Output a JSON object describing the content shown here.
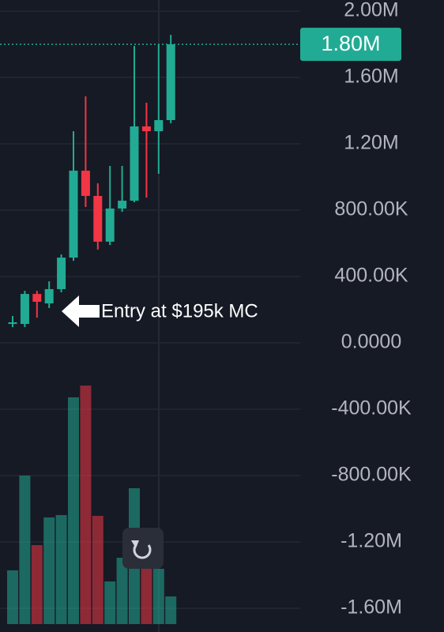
{
  "chart_data": {
    "type": "candlestick",
    "open": [
      114000,
      114000,
      295000,
      238000,
      324000,
      514000,
      1038000,
      886000,
      610000,
      810000,
      857000,
      1305000,
      1276000,
      1343000
    ],
    "high": [
      162000,
      314000,
      314000,
      371000,
      533000,
      1276000,
      1486000,
      962000,
      1067000,
      1067000,
      1790000,
      1448000,
      1800000,
      1857000
    ],
    "low": [
      95000,
      95000,
      152000,
      210000,
      305000,
      495000,
      819000,
      562000,
      590000,
      790000,
      848000,
      876000,
      1019000,
      1324000
    ],
    "close": [
      124000,
      295000,
      248000,
      324000,
      514000,
      1038000,
      886000,
      610000,
      810000,
      857000,
      1305000,
      1276000,
      1343000,
      1800000
    ],
    "volume": [
      68,
      188,
      100,
      135,
      138,
      287,
      302,
      137,
      54,
      84,
      172,
      90,
      70,
      35
    ],
    "up_color": "#22ab94",
    "down_color": "#f23645",
    "ylim": [
      -1743000,
      2067000
    ],
    "yticks": [
      {
        "value": 2000000,
        "label": "2.00M"
      },
      {
        "value": 1600000,
        "label": "1.60M"
      },
      {
        "value": 1200000,
        "label": "1.20M"
      },
      {
        "value": 800000,
        "label": "800.00K"
      },
      {
        "value": 400000,
        "label": "400.00K"
      },
      {
        "value": 0,
        "label": "0.0000"
      },
      {
        "value": -400000,
        "label": "-400.00K"
      },
      {
        "value": -800000,
        "label": "-800.00K"
      },
      {
        "value": -1200000,
        "label": "-1.20M"
      },
      {
        "value": -1600000,
        "label": "-1.60M"
      }
    ],
    "last_price": {
      "value": 1800000,
      "label": "1.80M"
    },
    "annotation": "Entry at $195k MC",
    "grid": true
  }
}
